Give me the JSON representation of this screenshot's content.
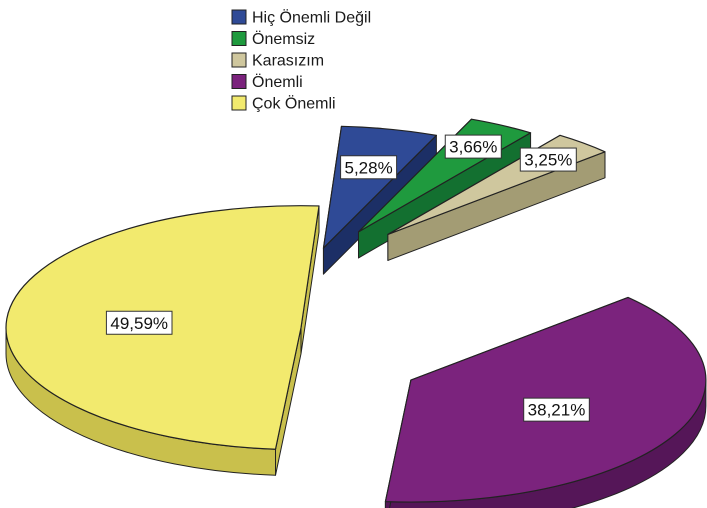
{
  "chart_data": {
    "type": "pie",
    "style": "3d-exploded",
    "legend_position": "top",
    "categories": [
      "Hiç Önemli Değil",
      "Önemsiz",
      "Karasızım",
      "Önemli",
      "Çok Önemli"
    ],
    "values": [
      5.28,
      3.66,
      3.25,
      38.21,
      49.59
    ],
    "data_labels": [
      "5,28%",
      "3,66%",
      "3,25%",
      "38,21%",
      "49,59%"
    ],
    "colors": [
      "#2f4a96",
      "#1f9a3e",
      "#cfc79e",
      "#7b237d",
      "#f2ea6e"
    ],
    "side_colors": [
      "#1c2f66",
      "#137030",
      "#a39c74",
      "#551658",
      "#c9c04c"
    ]
  }
}
